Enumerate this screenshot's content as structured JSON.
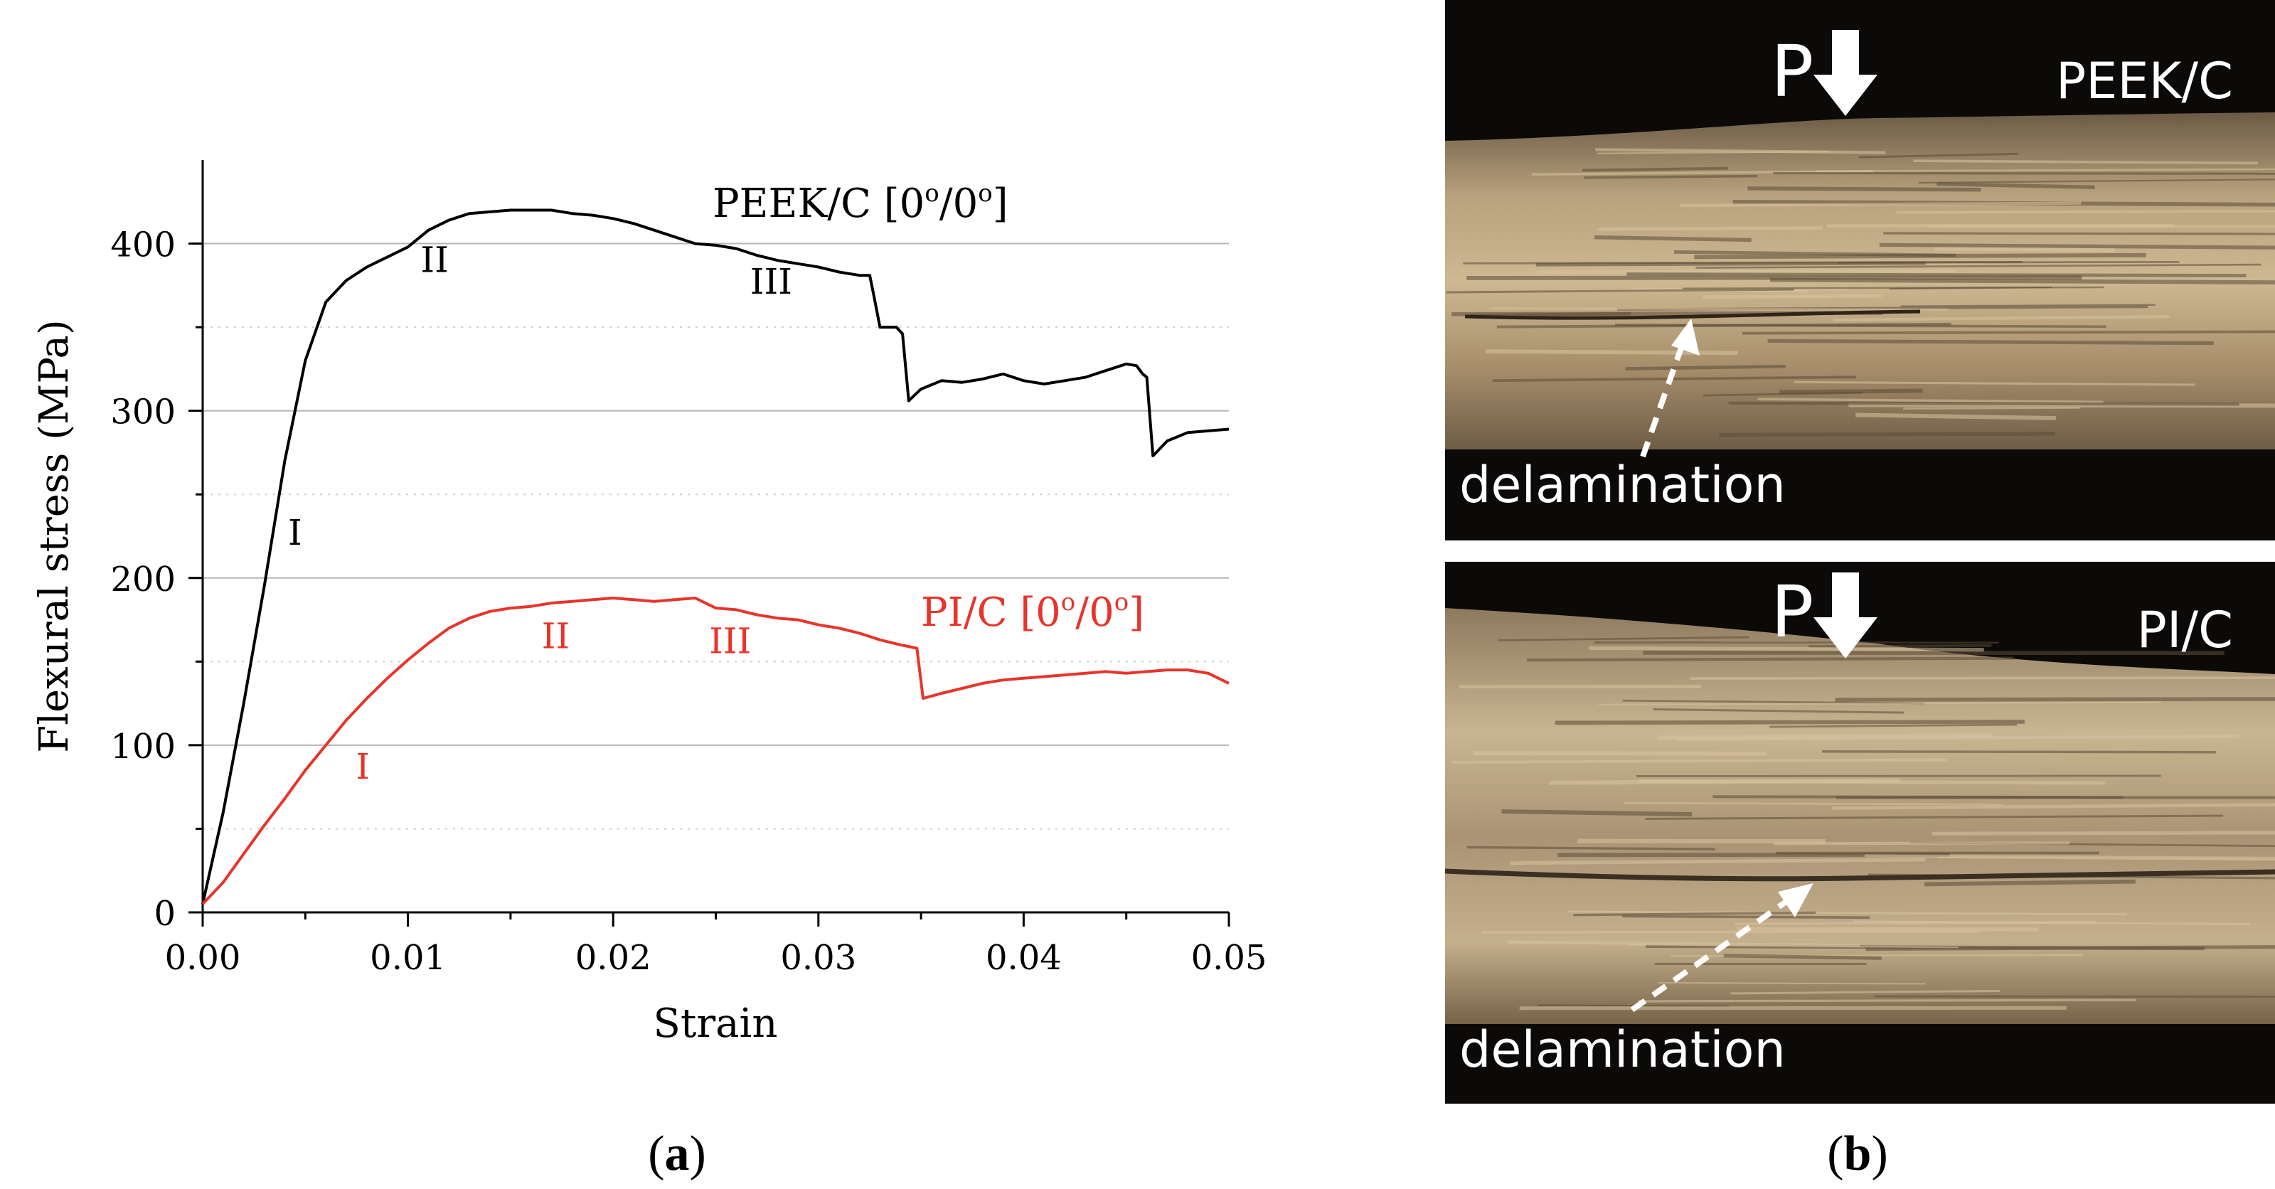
{
  "chart_data": {
    "type": "line",
    "xlabel": "Strain",
    "ylabel": "Flexural stress (MPa)",
    "xlim": [
      0.0,
      0.05
    ],
    "ylim": [
      0,
      450
    ],
    "x_ticks": [
      "0.00",
      "0.01",
      "0.02",
      "0.03",
      "0.04",
      "0.05"
    ],
    "y_ticks": [
      "0",
      "100",
      "200",
      "300",
      "400"
    ],
    "grid": "horizontal",
    "series": [
      {
        "name": "PEEK/C [0°/0°]",
        "label_text": "PEEK/C [0",
        "label_sup1": "o",
        "label_mid": "/0",
        "label_sup2": "o",
        "label_end": "]",
        "color": "#000000",
        "x": [
          0.0,
          0.001,
          0.002,
          0.003,
          0.004,
          0.005,
          0.006,
          0.007,
          0.008,
          0.009,
          0.01,
          0.011,
          0.012,
          0.013,
          0.014,
          0.015,
          0.016,
          0.017,
          0.018,
          0.019,
          0.02,
          0.021,
          0.022,
          0.023,
          0.024,
          0.025,
          0.026,
          0.027,
          0.028,
          0.029,
          0.03,
          0.031,
          0.032,
          0.0325,
          0.0327,
          0.033,
          0.0338,
          0.0341,
          0.0344,
          0.035,
          0.036,
          0.037,
          0.038,
          0.039,
          0.04,
          0.041,
          0.042,
          0.043,
          0.044,
          0.045,
          0.0455,
          0.0458,
          0.046,
          0.0463,
          0.047,
          0.048,
          0.049,
          0.05
        ],
        "y": [
          5,
          60,
          125,
          195,
          270,
          330,
          365,
          378,
          386,
          392,
          398,
          408,
          414,
          418,
          419,
          420,
          420,
          420,
          418,
          417,
          415,
          412,
          408,
          404,
          400,
          399,
          397,
          393,
          390,
          388,
          386,
          383,
          381,
          381,
          369,
          350,
          350,
          346,
          306,
          313,
          318,
          317,
          319,
          322,
          318,
          316,
          318,
          320,
          324,
          328,
          327,
          322,
          320,
          273,
          282,
          287,
          288,
          289
        ],
        "stage_labels": [
          "I",
          "II",
          "III"
        ],
        "stage_positions": [
          [
            0.0045,
            220
          ],
          [
            0.0113,
            383
          ],
          [
            0.0277,
            370
          ]
        ]
      },
      {
        "name": "PI/C [0°/0°]",
        "label_text": "PI/C [0",
        "label_sup1": "o",
        "label_mid": "/0",
        "label_sup2": "o",
        "label_end": "]",
        "color": "#e8342a",
        "x": [
          0.0,
          0.001,
          0.002,
          0.003,
          0.004,
          0.005,
          0.006,
          0.007,
          0.008,
          0.009,
          0.01,
          0.011,
          0.012,
          0.013,
          0.014,
          0.015,
          0.016,
          0.017,
          0.018,
          0.019,
          0.02,
          0.021,
          0.022,
          0.023,
          0.024,
          0.025,
          0.026,
          0.027,
          0.028,
          0.029,
          0.03,
          0.031,
          0.032,
          0.033,
          0.034,
          0.0348,
          0.0351,
          0.036,
          0.037,
          0.038,
          0.039,
          0.04,
          0.041,
          0.042,
          0.043,
          0.044,
          0.045,
          0.046,
          0.047,
          0.048,
          0.049,
          0.05
        ],
        "y": [
          5,
          18,
          35,
          52,
          68,
          85,
          100,
          115,
          128,
          140,
          151,
          161,
          170,
          176,
          180,
          182,
          183,
          185,
          186,
          187,
          188,
          187,
          186,
          187,
          188,
          182,
          181,
          178,
          176,
          175,
          172,
          170,
          167,
          163,
          160,
          158,
          128,
          131,
          134,
          137,
          139,
          140,
          141,
          142,
          143,
          144,
          143,
          144,
          145,
          145,
          143,
          137
        ],
        "stage_labels": [
          "I",
          "II",
          "III"
        ],
        "stage_positions": [
          [
            0.0078,
            80
          ],
          [
            0.0172,
            158
          ],
          [
            0.0257,
            155
          ]
        ]
      }
    ]
  },
  "captions": {
    "a_open": "(",
    "a_letter": "a",
    "a_close": ")",
    "b_open": "(",
    "b_letter": "b",
    "b_close": ")"
  },
  "photos": {
    "top_label": "PEEK/C",
    "bottom_label": "PI/C",
    "load_label": "P",
    "delamination_label": "delamination"
  },
  "colors": {
    "peek": "#000000",
    "pi": "#e8342a",
    "grid": "#b5b5b5",
    "photo_bg": "#0c0a08",
    "fiber_light": "#d9c4a0",
    "fiber_mid": "#9c8766",
    "fiber_dark": "#5c4c39"
  }
}
